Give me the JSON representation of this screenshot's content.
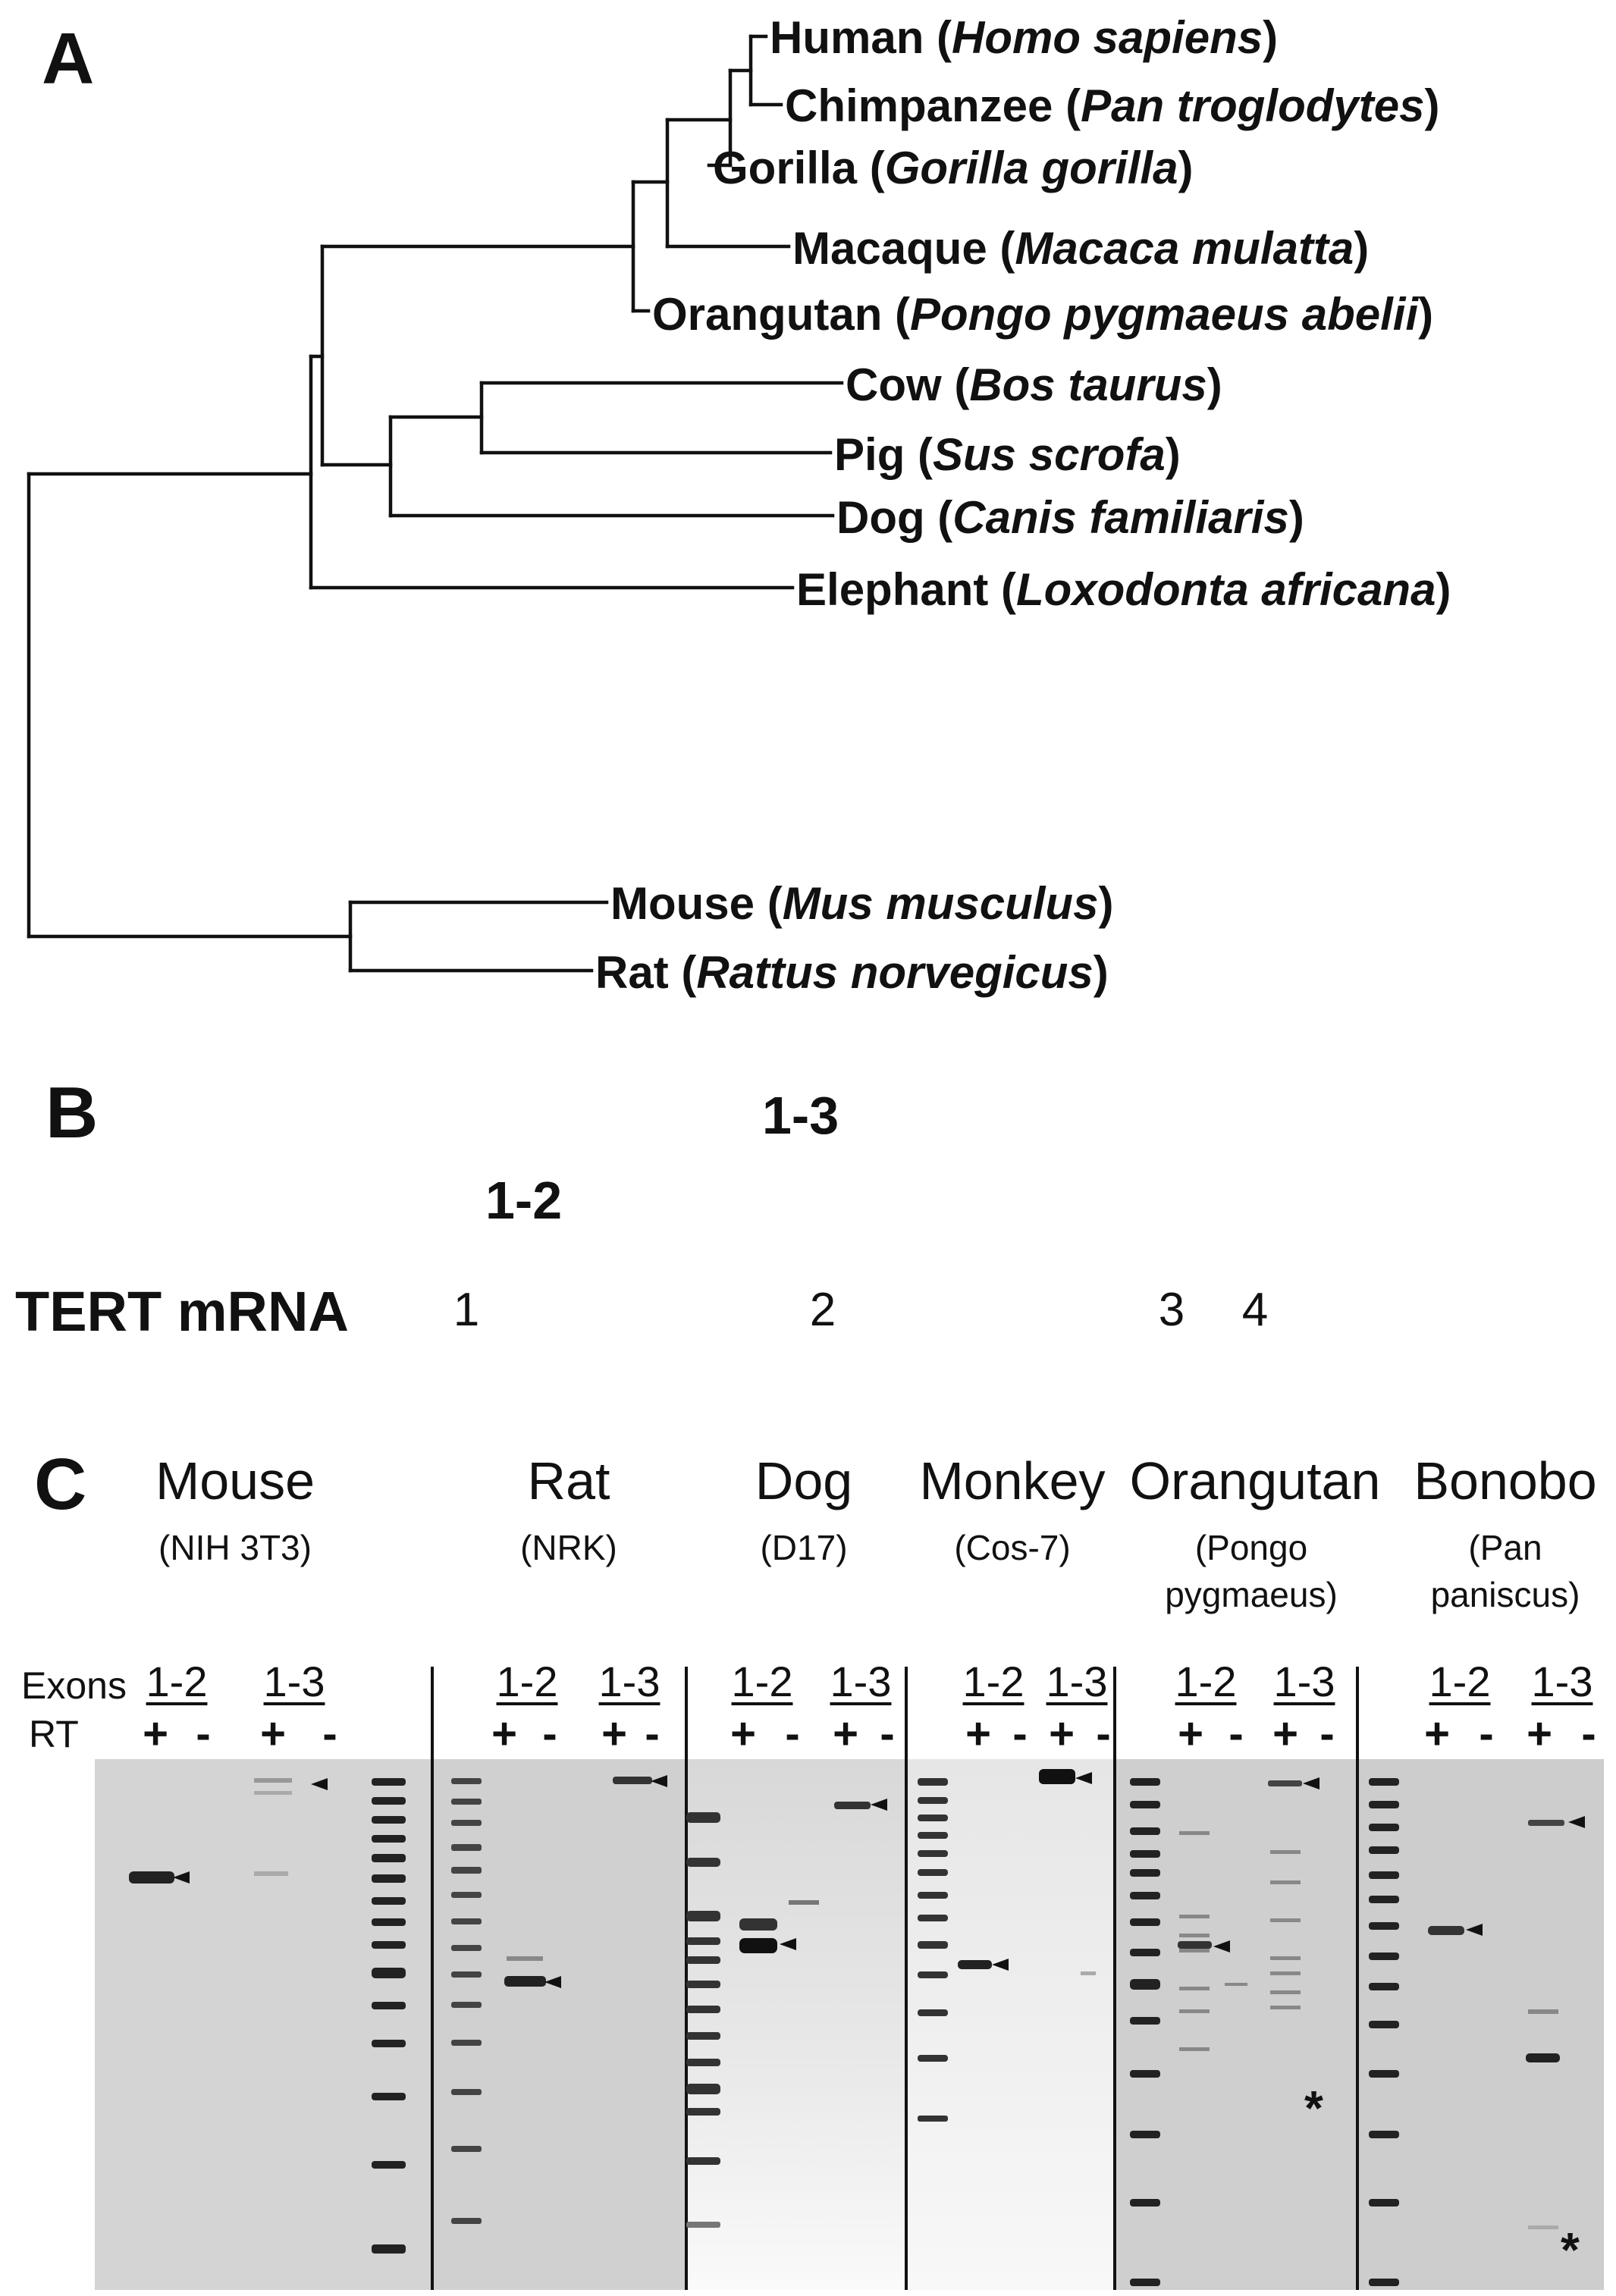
{
  "panel_a": {
    "letter": "A",
    "taxa": [
      {
        "common": "Human",
        "scientific": "Homo sapiens"
      },
      {
        "common": "Chimpanzee",
        "scientific": "Pan troglodytes"
      },
      {
        "common": "Gorilla",
        "scientific": "Gorilla gorilla"
      },
      {
        "common": "Macaque",
        "scientific": "Macaca mulatta"
      },
      {
        "common": "Orangutan",
        "scientific": "Pongo pygmaeus abelii"
      },
      {
        "common": "Cow",
        "scientific": "Bos taurus"
      },
      {
        "common": "Pig",
        "scientific": "Sus scrofa"
      },
      {
        "common": "Dog",
        "scientific": "Canis familiaris"
      },
      {
        "common": "Elephant",
        "scientific": "Loxodonta africana"
      },
      {
        "common": "Mouse",
        "scientific": "Mus musculus"
      },
      {
        "common": "Rat",
        "scientific": "Rattus norvegicus"
      }
    ]
  },
  "panel_b": {
    "letter": "B",
    "gene_label": "TERT mRNA",
    "amplicon_long": "1-3",
    "amplicon_short": "1-2",
    "exons": [
      "1",
      "2",
      "3",
      "4"
    ]
  },
  "panel_c": {
    "letter": "C",
    "row_exons": "Exons",
    "row_rt": "RT",
    "plus": "+",
    "minus": "-",
    "star": "*",
    "species": [
      {
        "name": "Mouse",
        "sub": [
          "(NIH 3T3)"
        ]
      },
      {
        "name": "Rat",
        "sub": [
          "(NRK)"
        ]
      },
      {
        "name": "Dog",
        "sub": [
          "(D17)"
        ]
      },
      {
        "name": "Monkey",
        "sub": [
          "(Cos-7)"
        ]
      },
      {
        "name": "Orangutan",
        "sub": [
          "(Pongo",
          "pygmaeus)"
        ]
      },
      {
        "name": "Bonobo",
        "sub": [
          "(Pan",
          "paniscus)"
        ]
      }
    ],
    "lane_headers": [
      "1-2",
      "1-3"
    ]
  }
}
